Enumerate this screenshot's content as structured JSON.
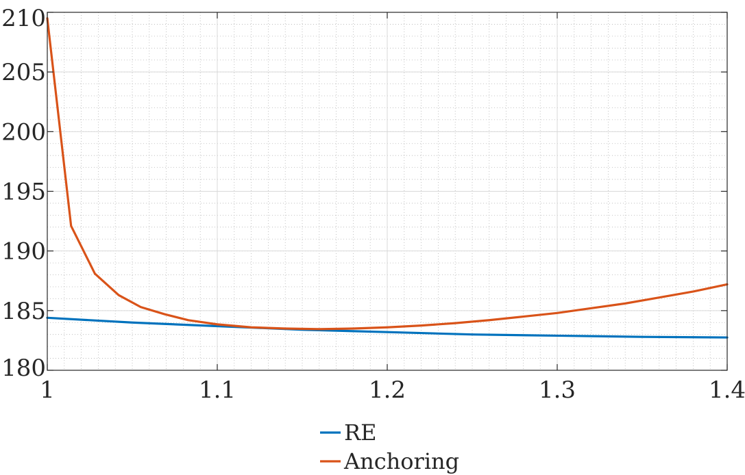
{
  "chart_data": {
    "type": "line",
    "title": "",
    "xlabel": "",
    "ylabel": "",
    "xlim": [
      1,
      1.4
    ],
    "ylim": [
      180,
      210
    ],
    "x_ticks": [
      1,
      1.1,
      1.2,
      1.3,
      1.4
    ],
    "x_tick_labels": [
      "1",
      "1.1",
      "1.2",
      "1.3",
      "1.4"
    ],
    "y_ticks": [
      180,
      185,
      190,
      195,
      200,
      205,
      210
    ],
    "y_tick_labels": [
      "180",
      "185",
      "190",
      "195",
      "200",
      "205",
      "210"
    ],
    "grid": true,
    "minor_grid": true,
    "legend_position": "bottom-center",
    "series": [
      {
        "name": "RE",
        "color": "#0072BD",
        "x": [
          1.0,
          1.05,
          1.1,
          1.15,
          1.2,
          1.25,
          1.3,
          1.35,
          1.4
        ],
        "y": [
          184.4,
          184.0,
          183.7,
          183.4,
          183.2,
          183.0,
          182.9,
          182.8,
          182.75
        ]
      },
      {
        "name": "Anchoring",
        "color": "#D95319",
        "x": [
          1.0,
          1.014,
          1.028,
          1.042,
          1.055,
          1.069,
          1.083,
          1.1,
          1.12,
          1.14,
          1.16,
          1.18,
          1.2,
          1.22,
          1.24,
          1.26,
          1.28,
          1.3,
          1.32,
          1.34,
          1.36,
          1.38,
          1.4
        ],
        "y": [
          209.5,
          192.1,
          188.1,
          186.3,
          185.3,
          184.7,
          184.2,
          183.85,
          183.6,
          183.5,
          183.45,
          183.5,
          183.6,
          183.75,
          183.95,
          184.2,
          184.5,
          184.8,
          185.2,
          185.6,
          186.1,
          186.6,
          187.2
        ]
      }
    ]
  }
}
